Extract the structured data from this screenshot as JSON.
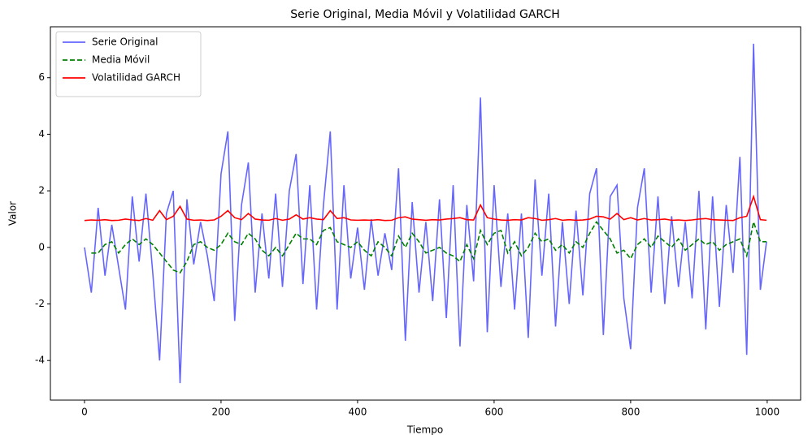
{
  "chart_data": {
    "type": "line",
    "title": "Serie Original, Media Móvil y Volatilidad GARCH",
    "xlabel": "Tiempo",
    "ylabel": "Valor",
    "x": [
      0,
      10,
      20,
      30,
      40,
      50,
      60,
      70,
      80,
      90,
      100,
      110,
      120,
      130,
      140,
      150,
      160,
      170,
      180,
      190,
      200,
      210,
      220,
      230,
      240,
      250,
      260,
      270,
      280,
      290,
      300,
      310,
      320,
      330,
      340,
      350,
      360,
      370,
      380,
      390,
      400,
      410,
      420,
      430,
      440,
      450,
      460,
      470,
      480,
      490,
      500,
      510,
      520,
      530,
      540,
      550,
      560,
      570,
      580,
      590,
      600,
      610,
      620,
      630,
      640,
      650,
      660,
      670,
      680,
      690,
      700,
      710,
      720,
      730,
      740,
      750,
      760,
      770,
      780,
      790,
      800,
      810,
      820,
      830,
      840,
      850,
      860,
      870,
      880,
      890,
      900,
      910,
      920,
      930,
      940,
      950,
      960,
      970,
      980,
      990,
      999
    ],
    "series": [
      {
        "name": "Serie Original",
        "color": "#6666ff",
        "linestyle": "solid",
        "values": [
          0,
          -1.6,
          1.4,
          -1.0,
          0.8,
          -0.7,
          -2.2,
          1.8,
          -0.5,
          1.9,
          -0.9,
          -4.0,
          1.2,
          2.0,
          -4.8,
          1.7,
          -0.6,
          0.9,
          -0.3,
          -1.9,
          2.6,
          4.1,
          -2.6,
          1.5,
          3.0,
          -1.6,
          1.2,
          -1.1,
          1.9,
          -1.4,
          2.0,
          3.3,
          -1.3,
          2.2,
          -2.2,
          1.5,
          4.1,
          -2.2,
          2.2,
          -1.1,
          0.7,
          -1.5,
          1.0,
          -1.0,
          0.5,
          -0.8,
          2.8,
          -3.3,
          1.6,
          -1.6,
          0.9,
          -1.9,
          1.7,
          -2.5,
          2.2,
          -3.5,
          1.5,
          -1.2,
          5.3,
          -3.0,
          2.2,
          -1.4,
          1.2,
          -2.2,
          1.2,
          -3.2,
          2.4,
          -1.0,
          1.9,
          -2.8,
          0.9,
          -2.0,
          1.3,
          -1.7,
          1.9,
          2.8,
          -3.1,
          1.8,
          2.2,
          -1.8,
          -3.6,
          1.4,
          2.8,
          -1.6,
          1.8,
          -2.0,
          1.1,
          -1.4,
          0.9,
          -1.8,
          2.0,
          -2.9,
          1.8,
          -2.1,
          1.5,
          -0.9,
          3.2,
          -3.8,
          7.2,
          -1.5,
          0.2
        ]
      },
      {
        "name": "Media Móvil",
        "color": "green",
        "linestyle": "dashed",
        "values": [
          null,
          -0.2,
          -0.2,
          0.1,
          0.2,
          -0.2,
          0.1,
          0.3,
          0.1,
          0.3,
          0.1,
          -0.2,
          -0.5,
          -0.8,
          -0.9,
          -0.5,
          0.1,
          0.2,
          0.0,
          -0.1,
          0.1,
          0.5,
          0.2,
          0.1,
          0.5,
          0.3,
          -0.1,
          -0.3,
          0.0,
          -0.3,
          0.1,
          0.5,
          0.3,
          0.3,
          0.1,
          0.6,
          0.7,
          0.2,
          0.1,
          0.0,
          0.2,
          -0.1,
          -0.3,
          0.2,
          0.0,
          -0.3,
          0.4,
          0.0,
          0.5,
          0.2,
          -0.2,
          -0.1,
          0.0,
          -0.2,
          -0.3,
          -0.5,
          0.1,
          -0.4,
          0.6,
          0.1,
          0.5,
          0.6,
          -0.2,
          0.2,
          -0.3,
          0.0,
          0.5,
          0.2,
          0.3,
          -0.1,
          0.1,
          -0.2,
          0.2,
          0.0,
          0.5,
          0.9,
          0.6,
          0.3,
          -0.2,
          -0.1,
          -0.4,
          0.1,
          0.3,
          0.0,
          0.4,
          0.2,
          0.0,
          0.3,
          -0.1,
          0.1,
          0.3,
          0.1,
          0.2,
          -0.1,
          0.1,
          0.2,
          0.3,
          -0.3,
          0.9,
          0.2,
          0.2
        ]
      },
      {
        "name": "Volatilidad GARCH",
        "color": "red",
        "linestyle": "solid",
        "values": [
          0.95,
          0.97,
          0.96,
          0.98,
          0.95,
          0.96,
          1.0,
          0.97,
          0.95,
          1.02,
          0.96,
          1.3,
          0.98,
          1.1,
          1.45,
          1.0,
          0.96,
          0.97,
          0.95,
          0.97,
          1.1,
          1.3,
          1.05,
          0.98,
          1.2,
          1.0,
          0.97,
          0.96,
          1.02,
          0.96,
          1.0,
          1.15,
          1.0,
          1.05,
          1.0,
          0.98,
          1.3,
          1.02,
          1.05,
          0.97,
          0.96,
          0.97,
          0.96,
          0.98,
          0.95,
          0.96,
          1.05,
          1.08,
          1.0,
          0.98,
          0.96,
          0.98,
          0.97,
          1.0,
          1.02,
          1.05,
          0.98,
          0.97,
          1.5,
          1.05,
          1.0,
          0.97,
          0.96,
          0.98,
          0.97,
          1.05,
          1.02,
          0.96,
          0.98,
          1.02,
          0.96,
          0.98,
          0.96,
          0.97,
          1.0,
          1.1,
          1.08,
          1.0,
          1.2,
          0.98,
          1.05,
          0.97,
          1.02,
          0.97,
          0.98,
          1.0,
          0.96,
          0.97,
          0.95,
          0.97,
          1.0,
          1.02,
          0.98,
          0.97,
          0.96,
          0.95,
          1.05,
          1.1,
          1.8,
          0.98,
          0.96
        ]
      }
    ],
    "xlim": [
      -49.95,
      1048.95
    ],
    "xticks": [
      0,
      200,
      400,
      600,
      800,
      1000
    ],
    "ylim": [
      -5.4,
      7.8
    ],
    "yticks": [
      -4,
      -2,
      0,
      2,
      4,
      6
    ],
    "legend": "upper left"
  }
}
